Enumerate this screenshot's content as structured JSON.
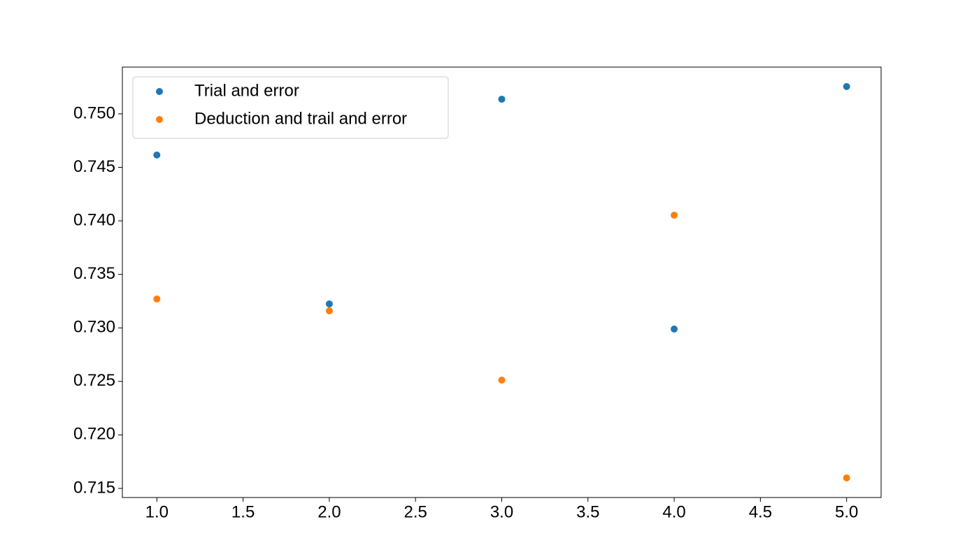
{
  "chart_data": {
    "type": "scatter",
    "x": [
      1,
      2,
      3,
      4,
      5
    ],
    "series": [
      {
        "name": "Trial and error",
        "color": "#1f77b4",
        "values": [
          0.74615,
          0.73224,
          0.75137,
          0.72989,
          0.75255
        ]
      },
      {
        "name": "Deduction and trail and error",
        "color": "#ff7f0e",
        "values": [
          0.7327,
          0.73159,
          0.72512,
          0.74053,
          0.71598
        ]
      }
    ],
    "xlim": [
      0.8,
      5.2
    ],
    "ylim": [
      0.71415,
      0.75437
    ],
    "xticks": [
      {
        "value": 1,
        "label": "1.0"
      },
      1.5,
      {
        "value": 2,
        "label": "2.0"
      },
      2.5,
      {
        "value": 3,
        "label": "3.0"
      },
      3.5,
      {
        "value": 4,
        "label": "4.0"
      },
      4.5,
      {
        "value": 5,
        "label": "5.0"
      }
    ],
    "yticks": [
      0.715,
      {
        "value": 0.72,
        "label": "0.720"
      },
      0.725,
      {
        "value": 0.73,
        "label": "0.730"
      },
      0.735,
      {
        "value": 0.74,
        "label": "0.740"
      },
      0.745,
      {
        "value": 0.75,
        "label": "0.750"
      }
    ],
    "legend": "upper left"
  }
}
